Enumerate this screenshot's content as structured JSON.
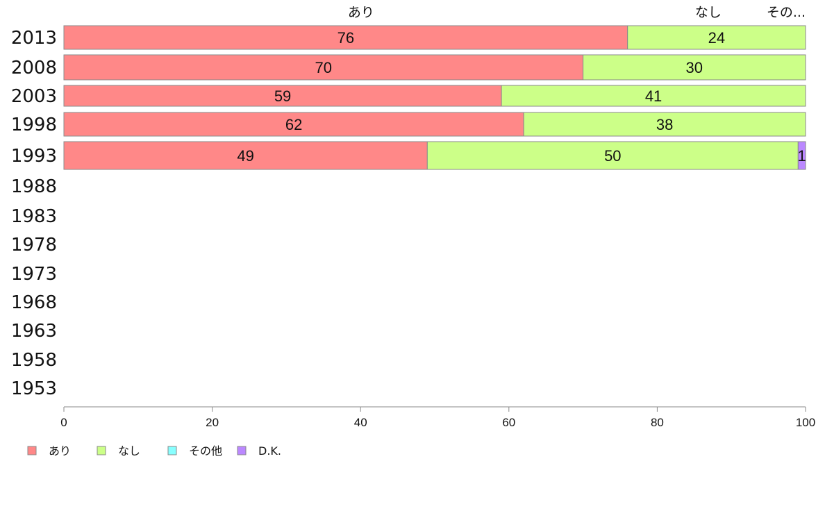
{
  "chart_data": {
    "type": "bar",
    "orientation": "horizontal",
    "stacked": true,
    "categories": [
      "2013",
      "2008",
      "2003",
      "1998",
      "1993",
      "1988",
      "1983",
      "1978",
      "1973",
      "1968",
      "1963",
      "1958",
      "1953"
    ],
    "series": [
      {
        "name": "あり",
        "color": "#ff8888",
        "values": [
          76,
          70,
          59,
          62,
          49,
          null,
          null,
          null,
          null,
          null,
          null,
          null,
          null
        ]
      },
      {
        "name": "なし",
        "color": "#ccff88",
        "values": [
          24,
          30,
          41,
          38,
          50,
          null,
          null,
          null,
          null,
          null,
          null,
          null,
          null
        ]
      },
      {
        "name": "その他",
        "color": "#88ffff",
        "values": [
          0,
          0,
          0,
          0,
          0,
          null,
          null,
          null,
          null,
          null,
          null,
          null,
          null
        ]
      },
      {
        "name": "D.K.",
        "color": "#bb88ff",
        "values": [
          0,
          0,
          0,
          0,
          1,
          null,
          null,
          null,
          null,
          null,
          null,
          null,
          null
        ]
      }
    ],
    "top_labels": [
      "あり",
      "なし",
      "その..."
    ],
    "xticks": [
      0,
      20,
      40,
      60,
      80,
      100
    ],
    "xlim": [
      0,
      100
    ],
    "grid": false,
    "legend_position": "bottom-left",
    "title": "",
    "xlabel": "",
    "ylabel": ""
  }
}
